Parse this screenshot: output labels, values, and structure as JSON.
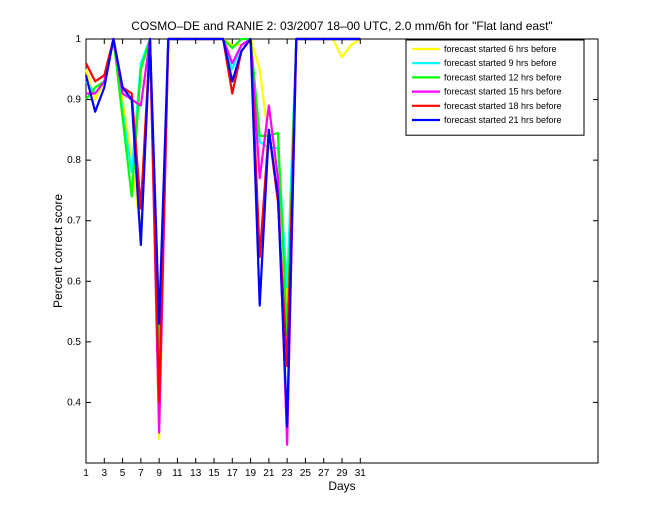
{
  "chart_data": {
    "type": "line",
    "title": "COSMO–DE and RANIE 2: 03/2007 18–00 UTC, 2.0 mm/6h for \"Flat land east\"",
    "xlabel": "Days",
    "ylabel": "Percent correct score",
    "xlim": [
      1,
      57
    ],
    "ylim": [
      0.3,
      1.0
    ],
    "xticks": [
      1,
      3,
      5,
      7,
      9,
      11,
      13,
      15,
      17,
      19,
      21,
      23,
      25,
      27,
      29,
      31
    ],
    "yticks": [
      0.4,
      0.5,
      0.6,
      0.7,
      0.8,
      0.9,
      1
    ],
    "ytick_labels": [
      "0.4",
      "0.5",
      "0.6",
      "0.7",
      "0.8",
      "0.9",
      "1"
    ],
    "grid": false,
    "legend_position": "top-right",
    "x": [
      1,
      2,
      3,
      4,
      5,
      6,
      7,
      8,
      9,
      10,
      11,
      12,
      13,
      14,
      15,
      16,
      17,
      18,
      19,
      20,
      21,
      22,
      23,
      24,
      25,
      26,
      27,
      28,
      29,
      30,
      31
    ],
    "series": [
      {
        "name": "forecast started 6 hrs before",
        "color": "#ffff00",
        "values": [
          0.95,
          0.9,
          0.93,
          1.0,
          0.9,
          0.8,
          0.68,
          1.0,
          0.34,
          1.0,
          1.0,
          1.0,
          1.0,
          1.0,
          1.0,
          1.0,
          0.99,
          0.99,
          1.0,
          0.95,
          0.83,
          0.78,
          0.57,
          1.0,
          1.0,
          1.0,
          1.0,
          1.0,
          0.97,
          0.99,
          1.0
        ]
      },
      {
        "name": "forecast started 9 hrs before",
        "color": "#00ffff",
        "values": [
          0.93,
          0.91,
          0.93,
          1.0,
          0.88,
          0.78,
          0.96,
          1.0,
          0.4,
          1.0,
          1.0,
          1.0,
          1.0,
          1.0,
          1.0,
          1.0,
          0.95,
          0.99,
          1.0,
          0.83,
          0.82,
          0.82,
          0.59,
          1.0,
          1.0,
          1.0,
          1.0,
          1.0,
          1.0,
          1.0,
          1.0
        ]
      },
      {
        "name": "forecast started 12 hrs before",
        "color": "#00ff00",
        "values": [
          0.9,
          0.92,
          0.93,
          1.0,
          0.87,
          0.74,
          0.95,
          1.0,
          0.48,
          1.0,
          1.0,
          1.0,
          1.0,
          1.0,
          1.0,
          1.0,
          0.985,
          1.0,
          1.0,
          0.84,
          0.84,
          0.845,
          0.51,
          1.0,
          1.0,
          1.0,
          1.0,
          1.0,
          1.0,
          1.0,
          1.0
        ]
      },
      {
        "name": "forecast started 15 hrs before",
        "color": "#ff00ff",
        "values": [
          0.91,
          0.91,
          0.93,
          1.0,
          0.91,
          0.9,
          0.89,
          1.0,
          0.35,
          1.0,
          1.0,
          1.0,
          1.0,
          1.0,
          1.0,
          1.0,
          0.96,
          0.99,
          1.0,
          0.77,
          0.89,
          0.77,
          0.33,
          1.0,
          1.0,
          1.0,
          1.0,
          1.0,
          1.0,
          1.0,
          1.0
        ]
      },
      {
        "name": "forecast started 18 hrs before",
        "color": "#ff0000",
        "values": [
          0.96,
          0.93,
          0.94,
          1.0,
          0.92,
          0.91,
          0.72,
          1.0,
          0.4,
          1.0,
          1.0,
          1.0,
          1.0,
          1.0,
          1.0,
          1.0,
          0.91,
          0.98,
          1.0,
          0.64,
          0.85,
          0.73,
          0.46,
          1.0,
          1.0,
          1.0,
          1.0,
          1.0,
          1.0,
          1.0,
          1.0
        ]
      },
      {
        "name": "forecast started 21 hrs before",
        "color": "#0000ff",
        "values": [
          0.94,
          0.88,
          0.92,
          1.0,
          0.92,
          0.9,
          0.66,
          1.0,
          0.53,
          1.0,
          1.0,
          1.0,
          1.0,
          1.0,
          1.0,
          1.0,
          0.93,
          0.98,
          1.0,
          0.56,
          0.85,
          0.74,
          0.36,
          1.0,
          1.0,
          1.0,
          1.0,
          1.0,
          1.0,
          1.0,
          1.0
        ]
      }
    ]
  }
}
